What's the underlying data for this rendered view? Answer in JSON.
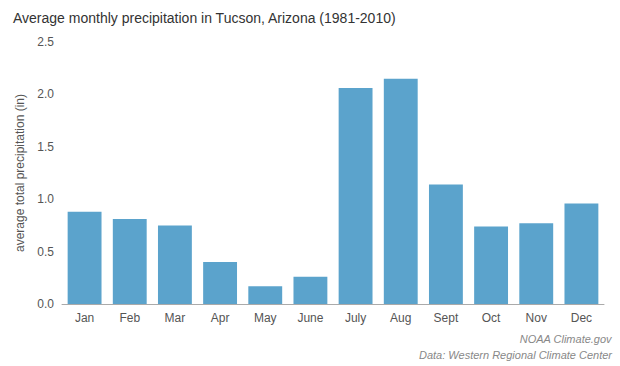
{
  "chart_data": {
    "type": "bar",
    "title": "Average monthly precipitation in Tucson, Arizona (1981-2010)",
    "ylabel": "average total precipitation (in)",
    "categories": [
      "Jan",
      "Feb",
      "Mar",
      "Apr",
      "May",
      "June",
      "July",
      "Aug",
      "Sept",
      "Oct",
      "Nov",
      "Dec"
    ],
    "values": [
      0.88,
      0.81,
      0.75,
      0.4,
      0.17,
      0.26,
      2.06,
      2.15,
      1.14,
      0.74,
      0.77,
      0.96
    ],
    "color": "#5ba3cc",
    "ylim": [
      0,
      2.5
    ],
    "yticks": [
      {
        "value": 0,
        "label": "0.0"
      },
      0.5,
      {
        "value": 1,
        "label": "1.0"
      },
      1.5,
      {
        "value": 2,
        "label": "2.0"
      },
      2.5
    ],
    "grid": false,
    "annotations": [
      "NOAA Climate.gov",
      "Data: Western Regional Climate Center"
    ]
  }
}
